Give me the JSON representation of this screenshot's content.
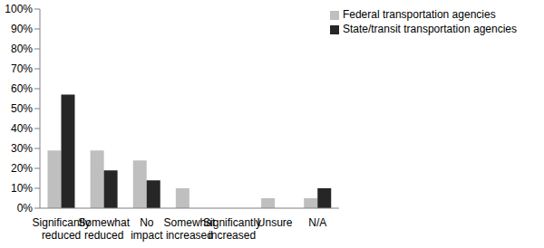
{
  "chart_data": {
    "type": "bar",
    "categories": [
      "Significantly reduced",
      "Somewhat reduced",
      "No impact",
      "Somewhat increased",
      "Significantly increased",
      "Unsure",
      "N/A"
    ],
    "series": [
      {
        "name": "Federal transportation agencies",
        "color": "#bfbfbf",
        "values": [
          29,
          29,
          24,
          10,
          0,
          5,
          5
        ]
      },
      {
        "name": "State/transit transportation agencies",
        "color": "#262626",
        "values": [
          57,
          19,
          14,
          0,
          0,
          0,
          10
        ]
      }
    ],
    "ylim": [
      0,
      100
    ],
    "yticks": [
      {
        "value": 0,
        "label": "0%"
      },
      {
        "value": 10,
        "label": "10%"
      },
      {
        "value": 20,
        "label": "20%"
      },
      {
        "value": 30,
        "label": "30%"
      },
      {
        "value": 40,
        "label": "40%"
      },
      {
        "value": 50,
        "label": "50%"
      },
      {
        "value": 60,
        "label": "60%"
      },
      {
        "value": 70,
        "label": "70%"
      },
      {
        "value": 80,
        "label": "80%"
      },
      {
        "value": 90,
        "label": "90%"
      },
      {
        "value": 100,
        "label": "100%"
      }
    ],
    "grid": false,
    "legend": "upper right"
  }
}
